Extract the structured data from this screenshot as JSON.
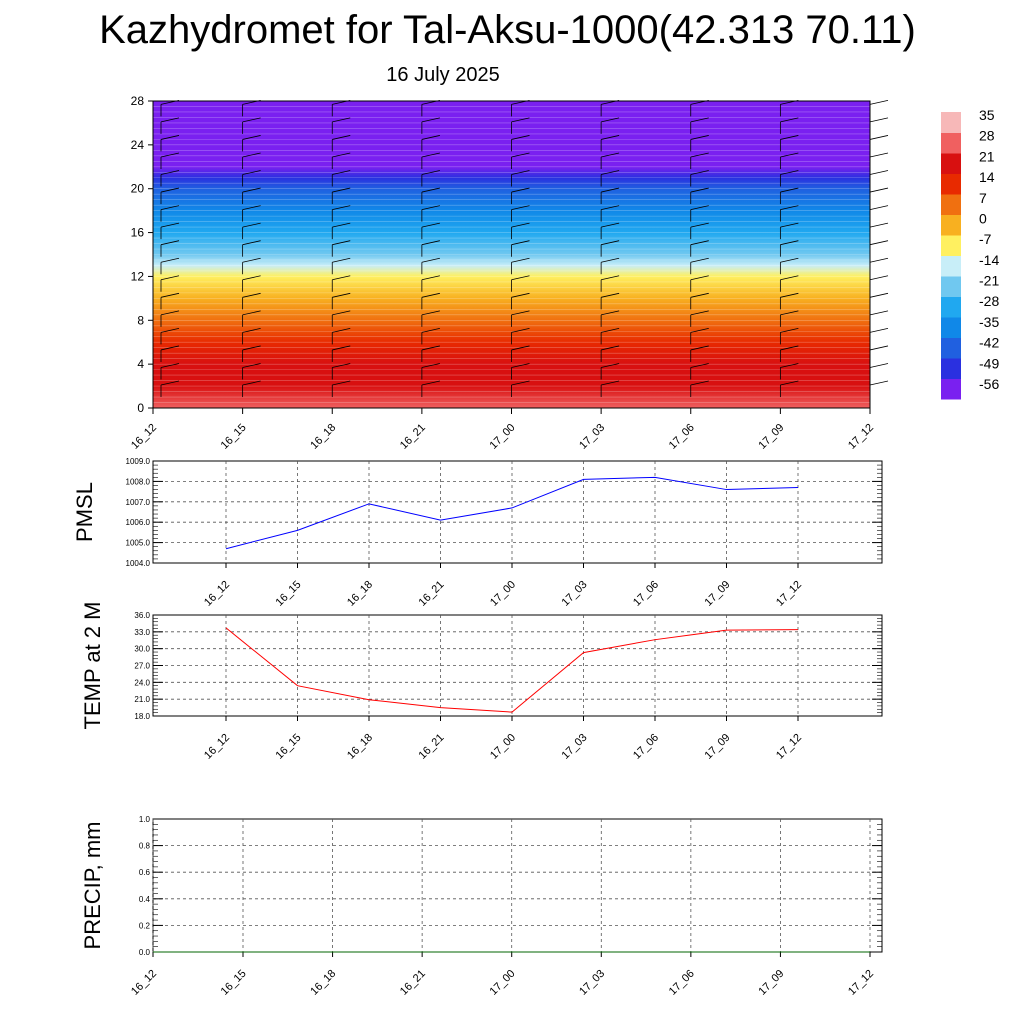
{
  "title": "Kazhydromet for Tal-Aksu-1000(42.313 70.11)",
  "subtitle": "16 July 2025",
  "colors": {
    "pmsl_line": "#0000ff",
    "temp_line": "#ff0000",
    "precip_line": "#006400",
    "grid": "#555555"
  },
  "chart_data": [
    {
      "type": "heatmap",
      "name": "temperature-wind cross-section",
      "x_ticks": [
        "16_12",
        "16_15",
        "16_18",
        "16_21",
        "17_00",
        "17_03",
        "17_06",
        "17_09",
        "17_12"
      ],
      "y_ticks": [
        0,
        4,
        8,
        12,
        16,
        20,
        24,
        28
      ],
      "ylim": [
        0,
        28
      ],
      "colorbar_labels": [
        "35",
        "28",
        "21",
        "14",
        "7",
        "0",
        "-7",
        "-14",
        "-21",
        "-28",
        "-35",
        "-42",
        "-49",
        "-56"
      ],
      "color_levels": [
        {
          "value": 35,
          "color": "#f7b8b8"
        },
        {
          "value": 28,
          "color": "#f06060"
        },
        {
          "value": 21,
          "color": "#d81010"
        },
        {
          "value": 14,
          "color": "#e82a00"
        },
        {
          "value": 7,
          "color": "#f07010"
        },
        {
          "value": 0,
          "color": "#f8b020"
        },
        {
          "value": -7,
          "color": "#fff060"
        },
        {
          "value": -14,
          "color": "#c8eef8"
        },
        {
          "value": -21,
          "color": "#70c8f0"
        },
        {
          "value": -28,
          "color": "#20a8f0"
        },
        {
          "value": -35,
          "color": "#1088e8"
        },
        {
          "value": -42,
          "color": "#2060e0"
        },
        {
          "value": -49,
          "color": "#2a30e0"
        },
        {
          "value": -56,
          "color": "#7a20f0"
        }
      ],
      "levels_by_height": [
        {
          "h": 0,
          "v": 31
        },
        {
          "h": 2,
          "v": 24
        },
        {
          "h": 4,
          "v": 19
        },
        {
          "h": 6,
          "v": 14
        },
        {
          "h": 8,
          "v": 8
        },
        {
          "h": 10,
          "v": 1
        },
        {
          "h": 12,
          "v": -5
        },
        {
          "h": 13,
          "v": -12
        },
        {
          "h": 14,
          "v": -20
        },
        {
          "h": 16,
          "v": -27
        },
        {
          "h": 18,
          "v": -34
        },
        {
          "h": 20,
          "v": -42
        },
        {
          "h": 21,
          "v": -50
        },
        {
          "h": 22,
          "v": -57
        },
        {
          "h": 28,
          "v": -58
        }
      ]
    },
    {
      "type": "line",
      "ylabel": "PMSL",
      "x": [
        "16_12",
        "16_15",
        "16_18",
        "16_21",
        "17_00",
        "17_03",
        "17_06",
        "17_09",
        "17_12"
      ],
      "values": [
        1004.7,
        1005.6,
        1006.9,
        1006.1,
        1006.7,
        1008.1,
        1008.2,
        1007.6,
        1007.7
      ],
      "y_ticks": [
        "1004.0",
        "1005.0",
        "1006.0",
        "1007.0",
        "1008.0",
        "1009.0"
      ],
      "ylim": [
        1004,
        1009
      ]
    },
    {
      "type": "line",
      "ylabel": "TEMP at 2 M",
      "x": [
        "16_12",
        "16_15",
        "16_18",
        "16_21",
        "17_00",
        "17_03",
        "17_06",
        "17_09",
        "17_12"
      ],
      "values": [
        33.7,
        23.4,
        20.9,
        19.5,
        18.7,
        29.3,
        31.6,
        33.3,
        33.4
      ],
      "y_ticks": [
        "18.0",
        "21.0",
        "24.0",
        "27.0",
        "30.0",
        "33.0",
        "36.0"
      ],
      "ylim": [
        18,
        36
      ]
    },
    {
      "type": "line",
      "ylabel": "PRECIP, mm",
      "x_ticks": [
        "16_12",
        "16_15",
        "16_18",
        "16_21",
        "17_00",
        "17_03",
        "17_06",
        "17_09",
        "17_12"
      ],
      "values": [
        0,
        0,
        0,
        0,
        0,
        0,
        0,
        0,
        0
      ],
      "y_ticks": [
        "0.0",
        "0.2",
        "0.4",
        "0.6",
        "0.8",
        "1.0"
      ],
      "ylim": [
        0,
        1
      ]
    }
  ]
}
